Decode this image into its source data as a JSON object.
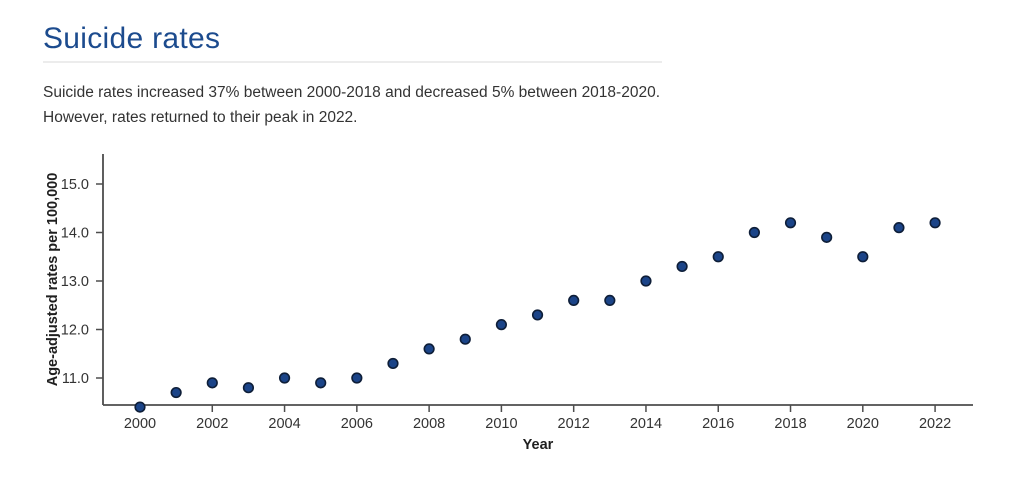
{
  "page": {
    "title": "Suicide rates",
    "subtitle_lines": [
      "Suicide rates increased 37% between 2000-2018 and decreased 5% between 2018-2020.",
      "However, rates returned to their peak in 2022."
    ]
  },
  "chart_data": {
    "type": "scatter",
    "title": "Suicide rates",
    "xlabel": "Year",
    "ylabel": "Age-adjusted rates per 100,000",
    "x": [
      2000,
      2001,
      2002,
      2003,
      2004,
      2005,
      2006,
      2007,
      2008,
      2009,
      2010,
      2011,
      2012,
      2013,
      2014,
      2015,
      2016,
      2017,
      2018,
      2019,
      2020,
      2021,
      2022
    ],
    "values": [
      10.4,
      10.7,
      10.9,
      10.8,
      11.0,
      10.9,
      11.0,
      11.3,
      11.6,
      11.8,
      12.1,
      12.3,
      12.6,
      12.6,
      13.0,
      13.3,
      13.5,
      14.0,
      14.2,
      13.9,
      13.5,
      14.1,
      14.2
    ],
    "x_ticks": [
      2000,
      2002,
      2004,
      2006,
      2008,
      2010,
      2012,
      2014,
      2016,
      2018,
      2020,
      2022
    ],
    "y_ticks": [
      11.0,
      12.0,
      13.0,
      14.0,
      15.0
    ],
    "xlim": [
      1999,
      2023.1
    ],
    "ylim": [
      10.4,
      15.6
    ],
    "grid": false,
    "legend": "none",
    "point_color": "#1b4488",
    "point_stroke": "#0e1e38",
    "axis_color": "#4d4d4d",
    "tick_label_color": "#333333"
  },
  "colors": {
    "title": "#1c4b8e",
    "rule": "#ececec",
    "text": "#333333",
    "background": "#ffffff"
  }
}
